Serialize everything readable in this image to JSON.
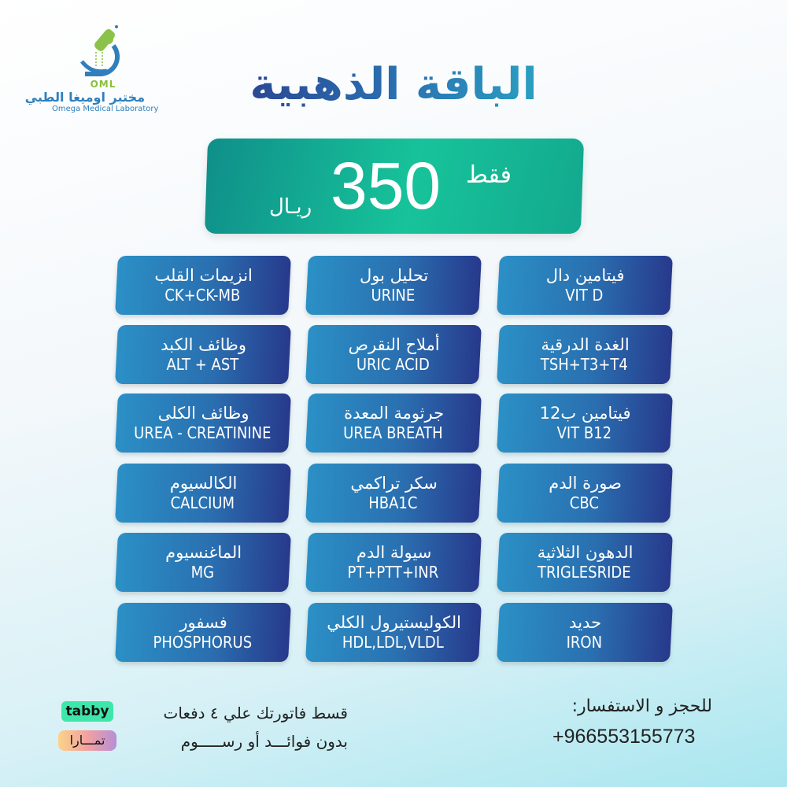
{
  "logo": {
    "abbr": "OML",
    "name_ar": "مختبر اوميغا الطبي",
    "name_en": "Omega Medical Laboratory"
  },
  "title": "الباقة الذهبية",
  "price": {
    "amount": "350",
    "only": "فقط",
    "currency": "ريـال"
  },
  "tests": [
    {
      "ar": "انزيمات القلب",
      "en": "CK+CK-MB"
    },
    {
      "ar": "تحليل بول",
      "en": "URINE"
    },
    {
      "ar": "فيتامين دال",
      "en": "VIT D"
    },
    {
      "ar": "وظائف الكبد",
      "en": "ALT + AST"
    },
    {
      "ar": "أملاح النقرص",
      "en": "URIC ACID"
    },
    {
      "ar": "الغدة الدرقية",
      "en": "TSH+T3+T4"
    },
    {
      "ar": "وظائف الكلى",
      "en": "UREA - CREATININE"
    },
    {
      "ar": "جرثومة المعدة",
      "en": "UREA BREATH"
    },
    {
      "ar": "فيتامين ب12",
      "en": "VIT B12"
    },
    {
      "ar": "الكالسيوم",
      "en": "CALCIUM"
    },
    {
      "ar": "سكر تراكمي",
      "en": "HBA1C"
    },
    {
      "ar": "صورة الدم",
      "en": "CBC"
    },
    {
      "ar": "الماغنسيوم",
      "en": "MG"
    },
    {
      "ar": "سيولة الدم",
      "en": "PT+PTT+INR"
    },
    {
      "ar": "الدهون الثلاثية",
      "en": "TRIGLESRIDE"
    },
    {
      "ar": "فسفور",
      "en": "PHOSPHORUS"
    },
    {
      "ar": "الكوليستيرول الكلي",
      "en": "HDL,LDL,VLDL"
    },
    {
      "ar": "حديد",
      "en": "IRON"
    }
  ],
  "contact": {
    "label": "للحجز و الاستفسار:",
    "phone": "+966553155773"
  },
  "installments": {
    "line1": "قسط فاتورتك علي ٤ دفعات",
    "line2": "بدون فوائـــد أو رســـــوم",
    "tabby": "tabby",
    "tamara": "تمـــارا"
  }
}
